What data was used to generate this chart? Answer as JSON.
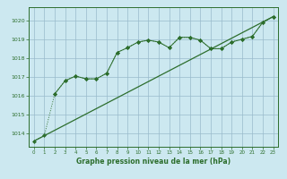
{
  "xlabel": "Graphe pression niveau de la mer (hPa)",
  "bg_color": "#cce8f0",
  "grid_color": "#99bbcc",
  "line_color": "#2d6e2d",
  "xlim": [
    -0.5,
    23.5
  ],
  "ylim": [
    1013.3,
    1020.7
  ],
  "yticks": [
    1014,
    1015,
    1016,
    1017,
    1018,
    1019,
    1020
  ],
  "xticks": [
    0,
    1,
    2,
    3,
    4,
    5,
    6,
    7,
    8,
    9,
    10,
    11,
    12,
    13,
    14,
    15,
    16,
    17,
    18,
    19,
    20,
    21,
    22,
    23
  ],
  "line1_x": [
    0,
    1,
    2,
    3,
    4,
    5,
    6,
    7,
    8,
    9,
    10,
    11,
    12,
    13,
    14,
    15,
    16,
    17,
    18,
    19,
    20,
    21,
    22,
    23
  ],
  "line1_y": [
    1013.6,
    1013.9,
    1016.1,
    1016.8,
    1017.05,
    1016.9,
    1016.9,
    1017.2,
    1018.3,
    1018.55,
    1018.85,
    1018.95,
    1018.85,
    1018.55,
    1019.1,
    1019.1,
    1018.95,
    1018.5,
    1018.5,
    1018.85,
    1019.0,
    1019.15,
    1019.9,
    1020.2
  ],
  "line2_x": [
    0,
    23
  ],
  "line2_y": [
    1013.6,
    1020.2
  ],
  "line3_x": [
    2,
    3,
    4,
    5,
    6,
    7,
    8,
    9,
    10,
    11,
    12,
    13,
    14,
    15,
    16,
    17,
    18,
    19,
    20,
    21,
    22,
    23
  ],
  "line3_y": [
    1016.1,
    1016.8,
    1017.05,
    1016.9,
    1016.9,
    1017.2,
    1018.3,
    1018.55,
    1018.85,
    1018.95,
    1018.85,
    1018.55,
    1019.1,
    1019.1,
    1018.95,
    1018.5,
    1018.5,
    1018.85,
    1019.0,
    1019.15,
    1019.9,
    1020.2
  ]
}
